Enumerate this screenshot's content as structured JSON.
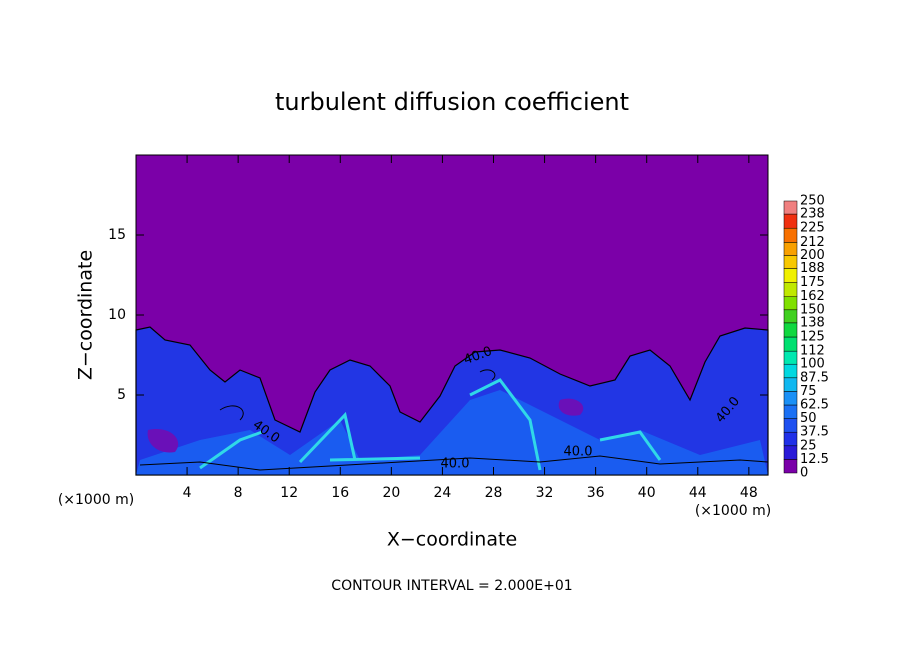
{
  "chart_data": {
    "type": "contour",
    "title": "turbulent diffusion coefficient",
    "x_label": "X−coordinate",
    "y_label": "Z−coordinate",
    "x_unit_left": "(×1000 m)",
    "x_unit_right": "(×1000 m)",
    "footer": "CONTOUR INTERVAL = 2.000E+01",
    "xlim": [
      0,
      49.5
    ],
    "xticks": [
      4,
      8,
      12,
      16,
      20,
      24,
      28,
      32,
      36,
      40,
      44,
      48
    ],
    "ylim": [
      0,
      20
    ],
    "yticks": [
      5,
      10,
      15
    ],
    "contour_labels": [
      "40.0",
      "40.0",
      "40.0",
      "40.0",
      "40.0"
    ],
    "colorbar": {
      "levels": [
        0,
        12.5,
        25,
        37.5,
        50,
        62.5,
        75,
        87.5,
        100,
        112,
        125,
        138,
        150,
        162,
        175,
        188,
        200,
        212,
        225,
        238,
        250
      ],
      "colors": [
        "#7a00a8",
        "#2a1ad8",
        "#2030e8",
        "#1e50f0",
        "#1a70f4",
        "#1a90f6",
        "#10b8f0",
        "#00d8e0",
        "#00e8b0",
        "#00e070",
        "#10d840",
        "#40d020",
        "#80e000",
        "#c0e800",
        "#f0f000",
        "#f8c800",
        "#f8a000",
        "#f87000",
        "#f03010",
        "#f08080"
      ]
    }
  }
}
